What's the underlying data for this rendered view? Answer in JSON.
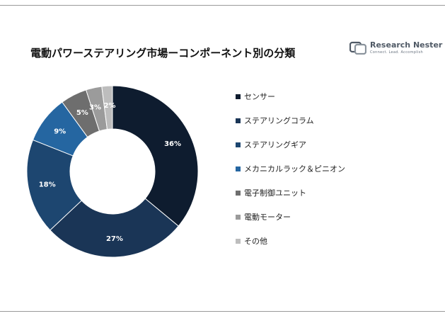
{
  "header": {
    "title": "電動パワーステアリング市場ーコンポーネント別の分類"
  },
  "logo": {
    "name": "Research Nester",
    "tagline": "Connect. Lead. Accomplish",
    "icon": "research-nester-logo-icon",
    "color": "#505a66"
  },
  "chart_data": {
    "type": "pie",
    "donut": true,
    "legend_position": "right",
    "categories": [
      "センサー",
      "ステアリングコラム",
      "ステアリングギア",
      "メカニカルラック＆ピニオン",
      "電子制御ユニット",
      "電動モーター",
      "その他"
    ],
    "values": [
      36,
      27,
      18,
      9,
      5,
      3,
      2
    ],
    "data_labels": [
      "36%",
      "27%",
      "18%",
      "9%",
      "5%",
      "3%",
      "2%"
    ],
    "colors": [
      "#0e1c2f",
      "#1a3556",
      "#1d4670",
      "#2566a1",
      "#6e6e6e",
      "#9b9b9b",
      "#bdbdbd"
    ]
  }
}
